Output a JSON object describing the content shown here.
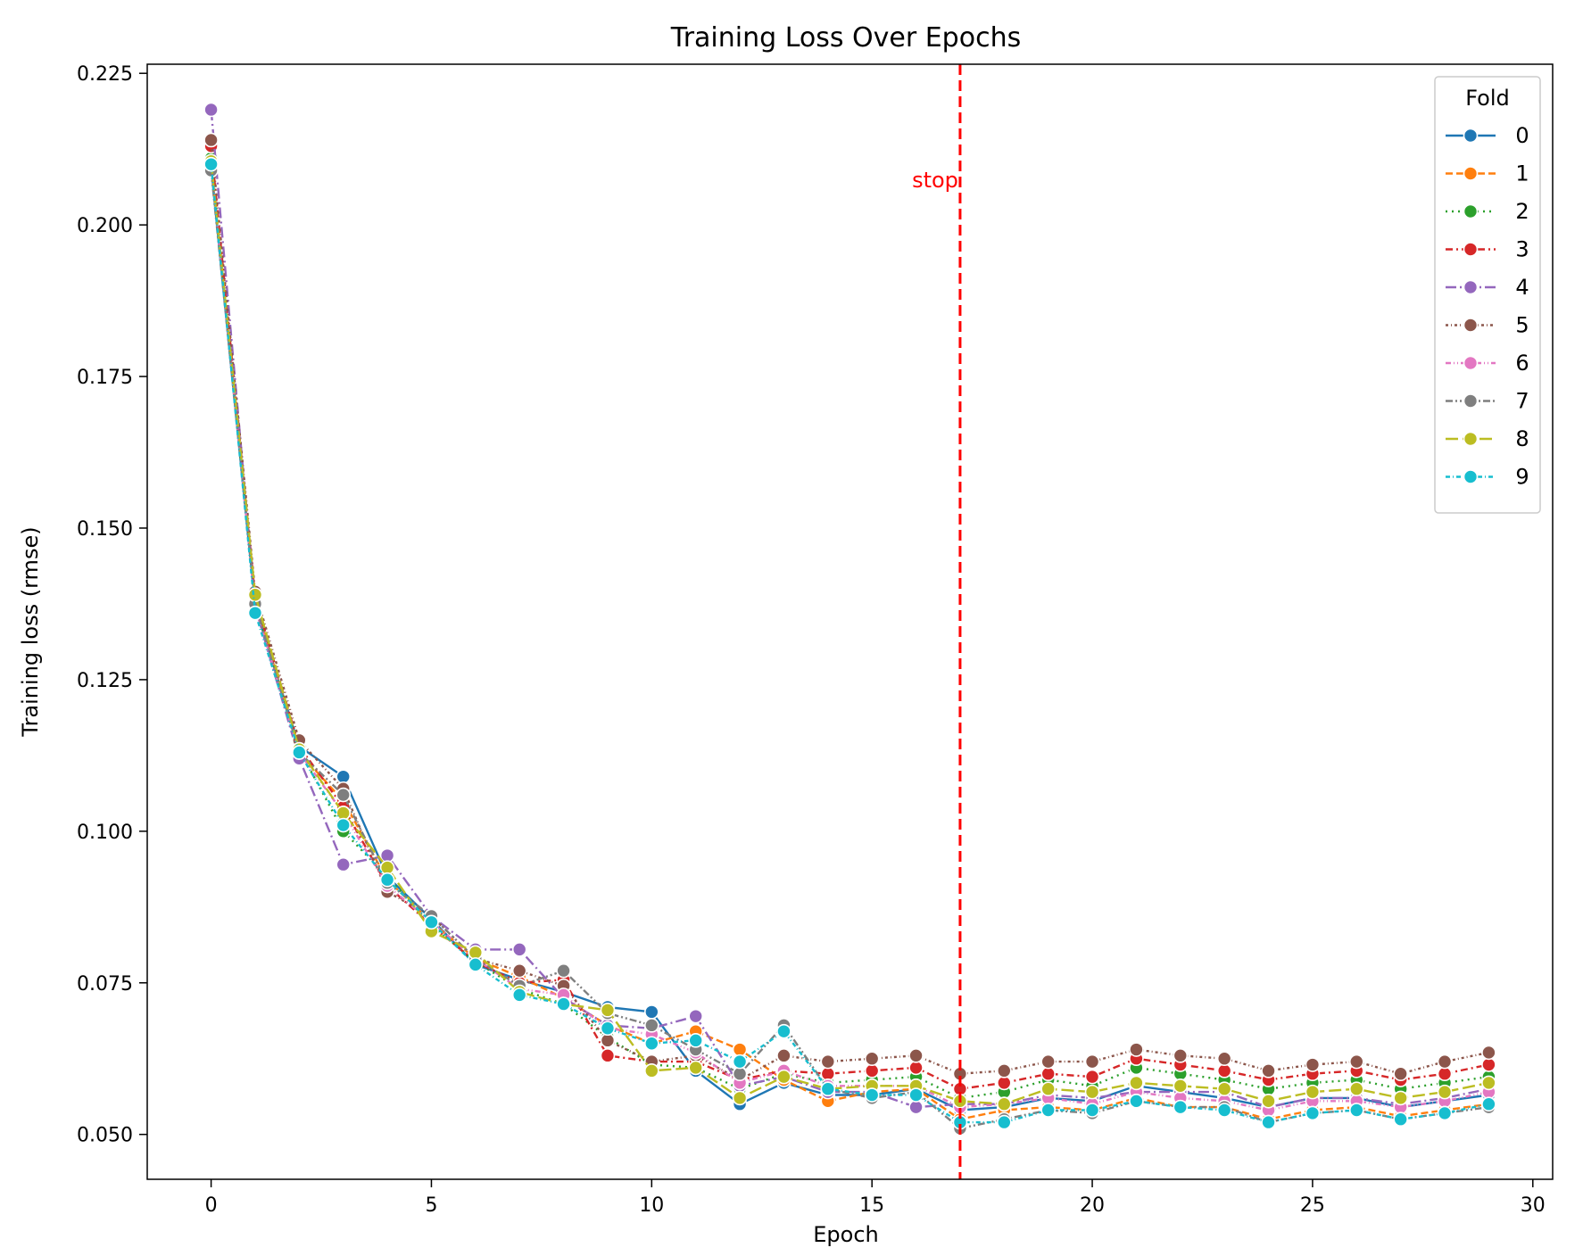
{
  "chart_data": {
    "type": "line",
    "title": "Training Loss Over Epochs",
    "xlabel": "Epoch",
    "ylabel": "Training loss (rmse)",
    "xlim": [
      -1.45,
      30.45
    ],
    "ylim": [
      0.0426,
      0.2265
    ],
    "xticks": [
      0,
      5,
      10,
      15,
      20,
      25,
      30
    ],
    "yticks": [
      0.05,
      0.075,
      0.1,
      0.125,
      0.15,
      0.175,
      0.2,
      0.225
    ],
    "ytick_labels": [
      "0.050",
      "0.075",
      "0.100",
      "0.125",
      "0.150",
      "0.175",
      "0.200",
      "0.225"
    ],
    "grid": false,
    "legend": {
      "title": "Fold",
      "placement": "top-right"
    },
    "x": [
      0,
      1,
      2,
      3,
      4,
      5,
      6,
      7,
      8,
      9,
      10,
      11,
      12,
      13,
      14,
      15,
      16,
      17,
      18,
      19,
      20,
      21,
      22,
      23,
      24,
      25,
      26,
      27,
      28,
      29
    ],
    "annotation": {
      "x": 17,
      "label": "stop",
      "color": "#ff0000"
    },
    "series": [
      {
        "name": "0",
        "color": "#1f77b4",
        "dash": "",
        "values": [
          0.2095,
          0.137,
          0.114,
          0.109,
          0.0925,
          0.0855,
          0.078,
          0.0755,
          0.0735,
          0.071,
          0.0702,
          0.0605,
          0.055,
          0.0585,
          0.0565,
          0.0565,
          0.0575,
          0.054,
          0.0545,
          0.056,
          0.0555,
          0.058,
          0.057,
          0.056,
          0.0545,
          0.056,
          0.056,
          0.0545,
          0.0555,
          0.0565
        ]
      },
      {
        "name": "1",
        "color": "#ff7f0e",
        "dash": "8,4",
        "values": [
          0.21,
          0.138,
          0.113,
          0.105,
          0.092,
          0.085,
          0.079,
          0.076,
          0.0725,
          0.068,
          0.065,
          0.067,
          0.064,
          0.059,
          0.0555,
          0.057,
          0.0575,
          0.0525,
          0.054,
          0.0545,
          0.054,
          0.056,
          0.0545,
          0.0545,
          0.0525,
          0.054,
          0.0545,
          0.053,
          0.054,
          0.055
        ]
      },
      {
        "name": "2",
        "color": "#2ca02c",
        "dash": "2,5",
        "values": [
          0.211,
          0.1375,
          0.1135,
          0.1,
          0.0925,
          0.0845,
          0.0785,
          0.074,
          0.0715,
          0.066,
          0.0615,
          0.061,
          0.0575,
          0.06,
          0.0585,
          0.059,
          0.0595,
          0.056,
          0.057,
          0.059,
          0.058,
          0.061,
          0.06,
          0.059,
          0.0575,
          0.0585,
          0.059,
          0.0575,
          0.0585,
          0.0595
        ]
      },
      {
        "name": "3",
        "color": "#d62728",
        "dash": "8,4,2,4",
        "values": [
          0.213,
          0.1385,
          0.114,
          0.104,
          0.091,
          0.0845,
          0.0785,
          0.075,
          0.0755,
          0.063,
          0.062,
          0.062,
          0.059,
          0.0605,
          0.06,
          0.0605,
          0.061,
          0.0575,
          0.0585,
          0.06,
          0.0595,
          0.0625,
          0.0615,
          0.0605,
          0.059,
          0.06,
          0.0605,
          0.059,
          0.06,
          0.0615
        ]
      },
      {
        "name": "4",
        "color": "#9467bd",
        "dash": "12,4,2,4",
        "values": [
          0.219,
          0.137,
          0.112,
          0.0945,
          0.096,
          0.086,
          0.0805,
          0.0805,
          0.0725,
          0.068,
          0.0675,
          0.0695,
          0.058,
          0.0595,
          0.057,
          0.057,
          0.0545,
          0.055,
          0.055,
          0.0565,
          0.056,
          0.057,
          0.057,
          0.057,
          0.0545,
          0.056,
          0.056,
          0.055,
          0.056,
          0.0575
        ]
      },
      {
        "name": "5",
        "color": "#8c564b",
        "dash": "3,3,1,3",
        "values": [
          0.214,
          0.1395,
          0.115,
          0.107,
          0.09,
          0.086,
          0.079,
          0.077,
          0.0745,
          0.0655,
          0.062,
          0.063,
          0.059,
          0.063,
          0.062,
          0.0625,
          0.063,
          0.06,
          0.0605,
          0.062,
          0.062,
          0.064,
          0.063,
          0.0625,
          0.0605,
          0.0615,
          0.062,
          0.06,
          0.062,
          0.0635
        ]
      },
      {
        "name": "6",
        "color": "#e377c2",
        "dash": "6,3,1,3,1,3",
        "values": [
          0.21,
          0.137,
          0.113,
          0.103,
          0.091,
          0.085,
          0.079,
          0.074,
          0.073,
          0.0675,
          0.0665,
          0.0635,
          0.0585,
          0.0605,
          0.058,
          0.058,
          0.058,
          0.0545,
          0.055,
          0.056,
          0.055,
          0.057,
          0.056,
          0.0555,
          0.054,
          0.0555,
          0.0555,
          0.0545,
          0.0555,
          0.057
        ]
      },
      {
        "name": "7",
        "color": "#7f7f7f",
        "dash": "8,3,2,3,2,3",
        "values": [
          0.209,
          0.1375,
          0.113,
          0.106,
          0.0915,
          0.086,
          0.079,
          0.0745,
          0.077,
          0.07,
          0.068,
          0.064,
          0.06,
          0.068,
          0.0575,
          0.056,
          0.057,
          0.051,
          0.0525,
          0.054,
          0.0535,
          0.0555,
          0.0545,
          0.0545,
          0.052,
          0.0535,
          0.054,
          0.0525,
          0.0535,
          0.0545
        ]
      },
      {
        "name": "8",
        "color": "#bcbd22",
        "dash": "14,5",
        "values": [
          0.2105,
          0.139,
          0.1135,
          0.103,
          0.094,
          0.0835,
          0.08,
          0.0735,
          0.0715,
          0.0705,
          0.0605,
          0.061,
          0.056,
          0.0595,
          0.0575,
          0.058,
          0.058,
          0.0555,
          0.055,
          0.0575,
          0.057,
          0.0585,
          0.058,
          0.0575,
          0.0555,
          0.057,
          0.0575,
          0.056,
          0.057,
          0.0585
        ]
      },
      {
        "name": "9",
        "color": "#17becf",
        "dash": "5,3,1,3",
        "values": [
          0.21,
          0.136,
          0.113,
          0.101,
          0.092,
          0.085,
          0.078,
          0.073,
          0.0715,
          0.0675,
          0.065,
          0.0655,
          0.062,
          0.067,
          0.0575,
          0.0565,
          0.0565,
          0.052,
          0.052,
          0.054,
          0.054,
          0.0555,
          0.0545,
          0.054,
          0.052,
          0.0535,
          0.054,
          0.0525,
          0.0535,
          0.055
        ]
      }
    ]
  }
}
